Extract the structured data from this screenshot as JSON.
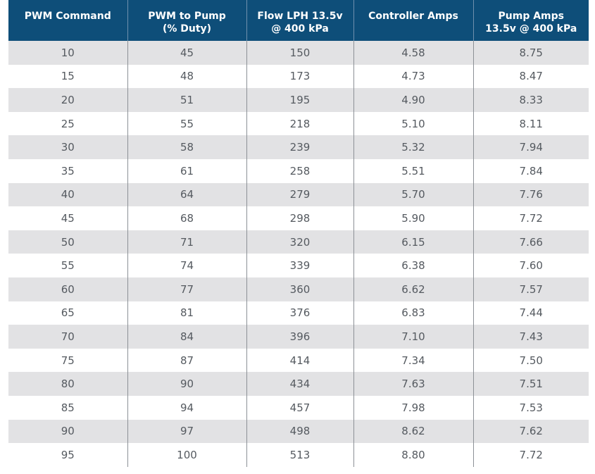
{
  "table": {
    "headers": [
      {
        "line1": "PWM Command",
        "line2": ""
      },
      {
        "line1": "PWM to Pump",
        "line2": "(% Duty)"
      },
      {
        "line1": "Flow LPH 13.5v",
        "line2": "@ 400 kPa"
      },
      {
        "line1": "Controller Amps",
        "line2": ""
      },
      {
        "line1": "Pump Amps",
        "line2": "13.5v @ 400 kPa"
      }
    ],
    "rows": [
      [
        "10",
        "45",
        "150",
        "4.58",
        "8.75"
      ],
      [
        "15",
        "48",
        "173",
        "4.73",
        "8.47"
      ],
      [
        "20",
        "51",
        "195",
        "4.90",
        "8.33"
      ],
      [
        "25",
        "55",
        "218",
        "5.10",
        "8.11"
      ],
      [
        "30",
        "58",
        "239",
        "5.32",
        "7.94"
      ],
      [
        "35",
        "61",
        "258",
        "5.51",
        "7.84"
      ],
      [
        "40",
        "64",
        "279",
        "5.70",
        "7.76"
      ],
      [
        "45",
        "68",
        "298",
        "5.90",
        "7.72"
      ],
      [
        "50",
        "71",
        "320",
        "6.15",
        "7.66"
      ],
      [
        "55",
        "74",
        "339",
        "6.38",
        "7.60"
      ],
      [
        "60",
        "77",
        "360",
        "6.62",
        "7.57"
      ],
      [
        "65",
        "81",
        "376",
        "6.83",
        "7.44"
      ],
      [
        "70",
        "84",
        "396",
        "7.10",
        "7.43"
      ],
      [
        "75",
        "87",
        "414",
        "7.34",
        "7.50"
      ],
      [
        "80",
        "90",
        "434",
        "7.63",
        "7.51"
      ],
      [
        "85",
        "94",
        "457",
        "7.98",
        "7.53"
      ],
      [
        "90",
        "97",
        "498",
        "8.62",
        "7.62"
      ],
      [
        "95",
        "100",
        "513",
        "8.80",
        "7.72"
      ]
    ]
  },
  "colors": {
    "header_bg": "#0e4e79",
    "header_text": "#ffffff",
    "row_shade": "#e2e2e4",
    "cell_text": "#555a60"
  }
}
